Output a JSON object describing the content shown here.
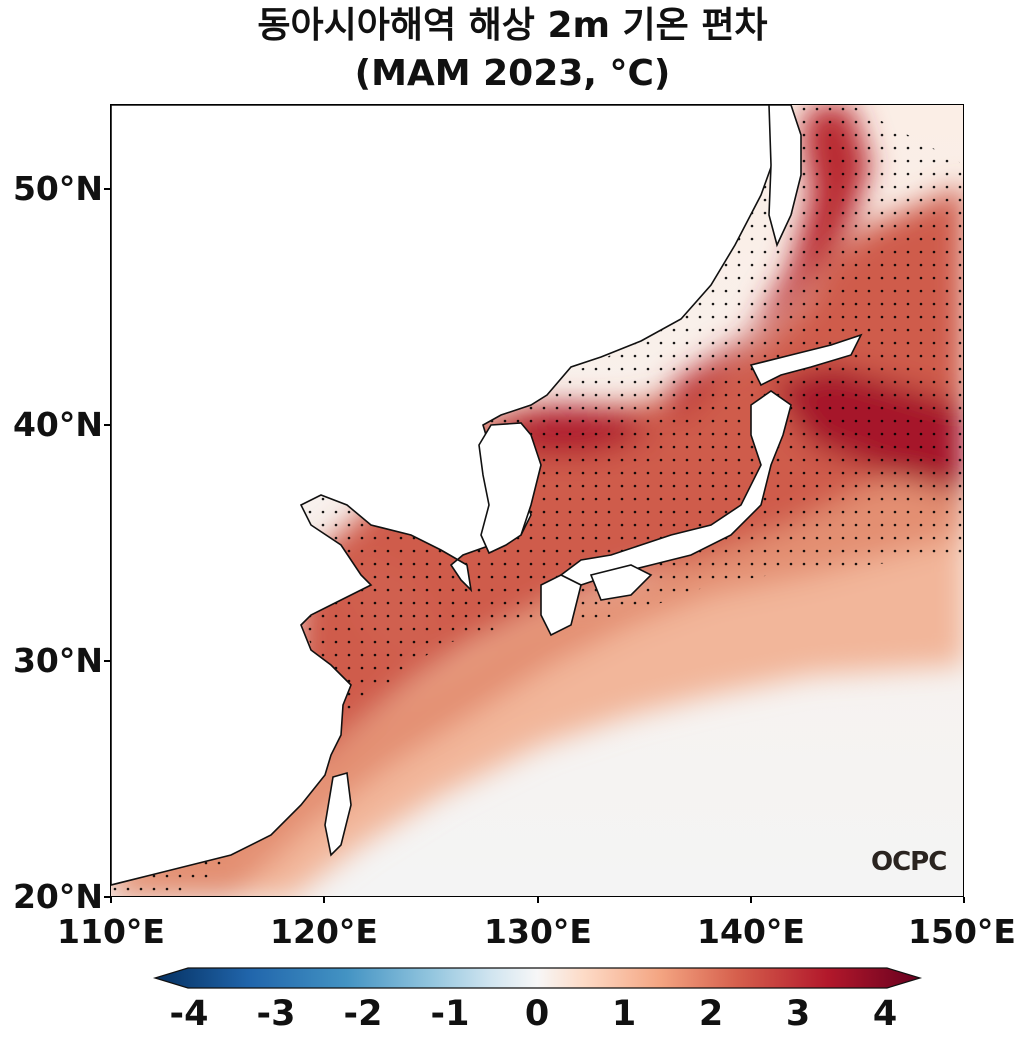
{
  "title": {
    "line1": "동아시아해역 해상 2m 기온 편차",
    "line2": "(MAM 2023, °C)"
  },
  "map": {
    "lat_ticks": [
      "50°N",
      "40°N",
      "30°N",
      "20°N"
    ],
    "lon_ticks": [
      "110°E",
      "120°E",
      "130°E",
      "140°E",
      "150°E"
    ],
    "extent": {
      "lon": [
        110,
        150
      ],
      "lat": [
        20,
        53.5
      ]
    },
    "logo": "OCPC",
    "colormap": "RdBu_r",
    "stippling": "significant anomaly"
  },
  "colorbar": {
    "min": -4,
    "max": 4,
    "ticks": [
      "-4",
      "-3",
      "-2",
      "-1",
      "0",
      "1",
      "2",
      "3",
      "4"
    ],
    "extend": "both",
    "colors": [
      "#053061",
      "#2166ac",
      "#4393c3",
      "#92c5de",
      "#d1e5f0",
      "#f7f7f7",
      "#fddbc7",
      "#f4a582",
      "#d6604d",
      "#b2182b",
      "#67001f"
    ]
  }
}
